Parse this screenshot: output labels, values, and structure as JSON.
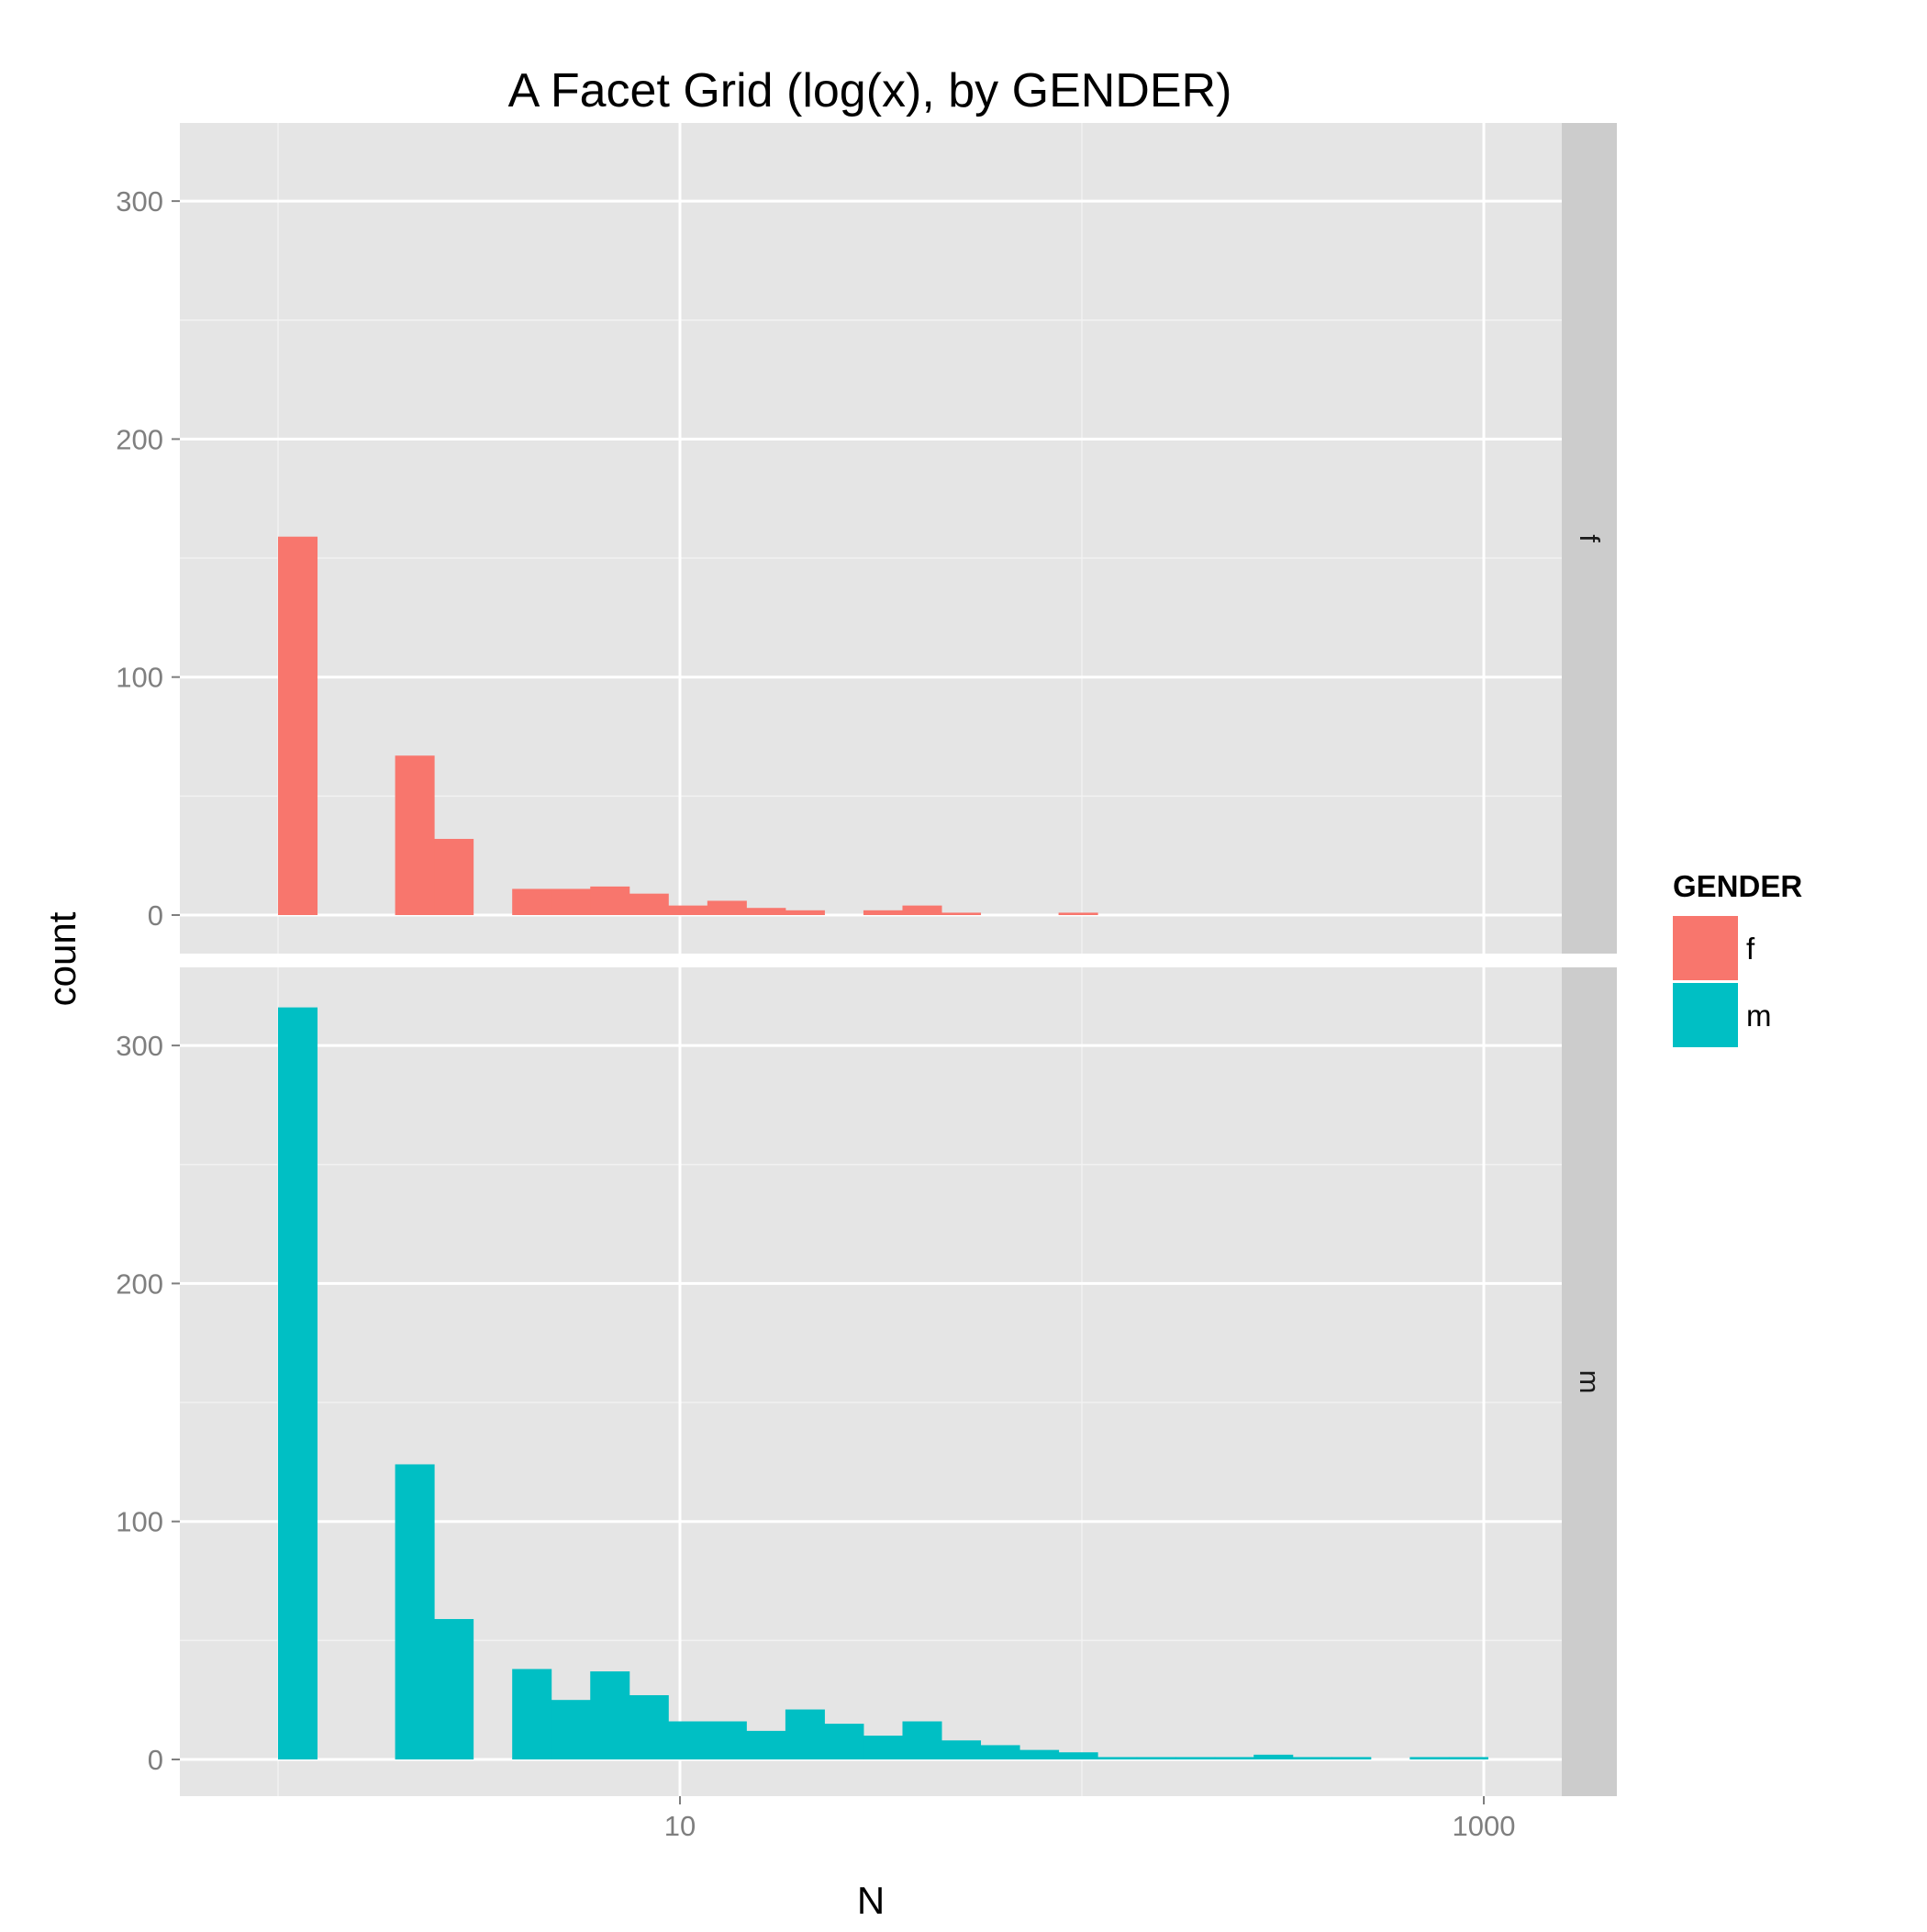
{
  "chart_data": {
    "type": "bar",
    "subtype": "faceted histogram",
    "title": "A Facet Grid (log(x), by GENDER)",
    "xlabel": "N",
    "ylabel": "count",
    "x_scale": "log10",
    "x_ticks": [
      {
        "value": 10,
        "label": "10"
      },
      {
        "value": 1000,
        "label": "1000"
      }
    ],
    "x_minor_grid": [
      1,
      100
    ],
    "y_ticks": [
      {
        "value": 0,
        "label": "0"
      },
      {
        "value": 100,
        "label": "100"
      },
      {
        "value": 200,
        "label": "200"
      },
      {
        "value": 300,
        "label": "300"
      }
    ],
    "y_minor_grid": [
      50,
      150,
      250
    ],
    "ylim": [
      -15,
      330
    ],
    "bin_start_log10": 0,
    "bin_width_log10": 0.0971,
    "legend": {
      "title": "GENDER",
      "placement": "right",
      "entries": [
        {
          "label": "f",
          "color": "#F8766D"
        },
        {
          "label": "m",
          "color": "#00BFC4"
        }
      ]
    },
    "panels": [
      {
        "strip": "f",
        "color": "#F8766D",
        "counts": [
          159,
          0,
          0,
          67,
          32,
          0,
          11,
          11,
          12,
          9,
          4,
          6,
          3,
          2,
          0,
          2,
          4,
          1,
          0,
          0,
          1,
          0,
          0,
          0,
          0,
          0,
          0,
          0,
          0,
          0,
          0
        ]
      },
      {
        "strip": "m",
        "color": "#00BFC4",
        "counts": [
          316,
          0,
          0,
          124,
          59,
          0,
          38,
          25,
          37,
          27,
          16,
          16,
          12,
          21,
          15,
          10,
          16,
          8,
          6,
          4,
          3,
          1,
          1,
          1,
          1,
          2,
          1,
          1,
          0,
          1,
          1
        ]
      }
    ]
  }
}
